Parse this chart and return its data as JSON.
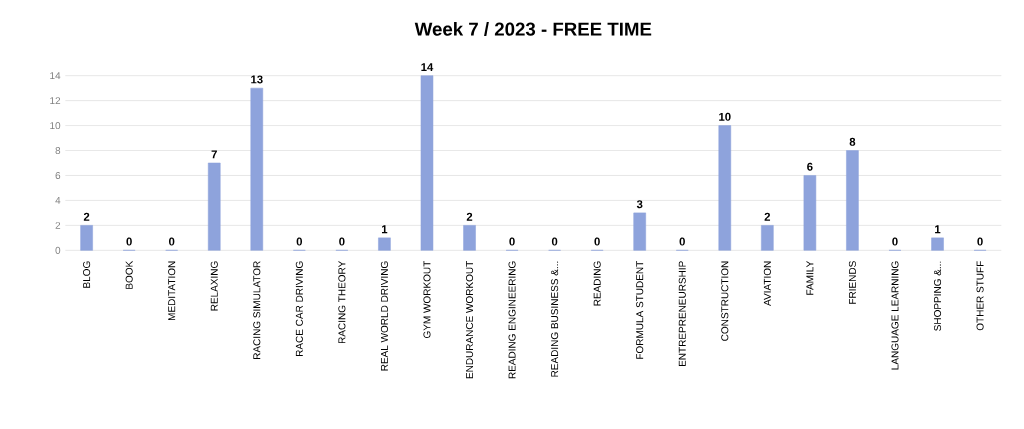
{
  "chart_data": {
    "type": "bar",
    "title": "Week 7 / 2023 - FREE TIME",
    "categories": [
      "BLOG",
      "BOOK",
      "MEDITATION",
      "RELAXING",
      "RACING SIMULATOR",
      "RACE CAR DRIVING",
      "RACING THEORY",
      "REAL WORLD DRIVING",
      "GYM WORKOUT",
      "ENDURANCE WORKOUT",
      "READING ENGINEERING",
      "READING BUSINESS &...",
      "READING",
      "FORMULA STUDENT",
      "ENTREPRENEURSHIP",
      "CONSTRUCTION",
      "AVIATION",
      "FAMILY",
      "FRIENDS",
      "LANGUAGE LEARNING",
      "SHOPPING &...",
      "OTHER STUFF"
    ],
    "values": [
      2,
      0,
      0,
      7,
      13,
      0,
      0,
      1,
      14,
      2,
      0,
      0,
      0,
      3,
      0,
      10,
      2,
      6,
      8,
      0,
      1,
      0
    ],
    "color": "#8ea3dc",
    "ylim": [
      0,
      14
    ],
    "yticks": [
      0,
      2,
      4,
      6,
      8,
      10,
      12,
      14
    ],
    "grid": "y",
    "data_labels": true
  }
}
